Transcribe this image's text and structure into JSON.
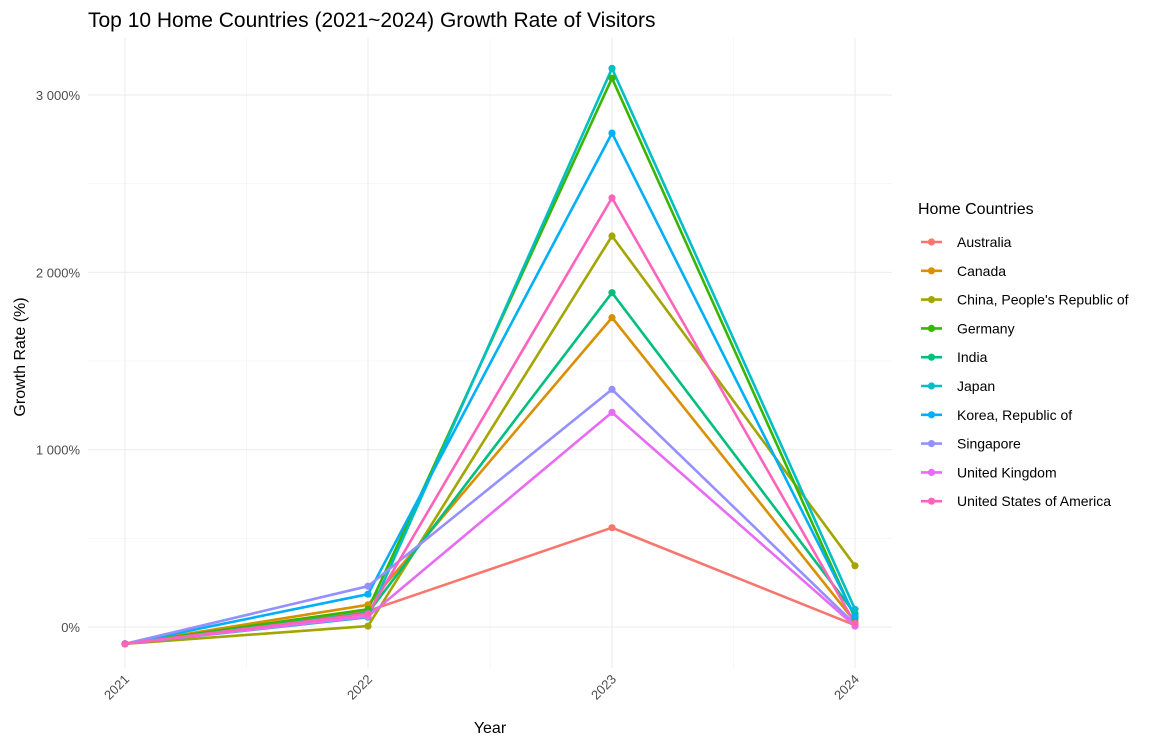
{
  "chart_data": {
    "type": "line",
    "title": "Top 10 Home Countries (2021~2024) Growth Rate of Visitors",
    "xlabel": "Year",
    "ylabel": "Growth Rate (%)",
    "x": [
      "2021",
      "2022",
      "2023",
      "2024"
    ],
    "ylim": [
      -250,
      3300
    ],
    "yticks": [
      0,
      1000,
      2000,
      3000
    ],
    "ytick_labels": [
      "0%",
      "1 000%",
      "2 000%",
      "3 000%"
    ],
    "grid": true,
    "legend": {
      "title": "Home Countries",
      "position": "right"
    },
    "series": [
      {
        "name": "Australia",
        "color": "#F8766D",
        "values": [
          -95,
          90,
          560,
          10
        ]
      },
      {
        "name": "Canada",
        "color": "#D89000",
        "values": [
          -95,
          125,
          1745,
          30
        ]
      },
      {
        "name": "China, People's Republic of",
        "color": "#A3A500",
        "values": [
          -95,
          5,
          2205,
          345
        ]
      },
      {
        "name": "Germany",
        "color": "#39B600",
        "values": [
          -95,
          100,
          3095,
          50
        ]
      },
      {
        "name": "India",
        "color": "#00BF7D",
        "values": [
          -95,
          80,
          1885,
          75
        ]
      },
      {
        "name": "Japan",
        "color": "#00BFC4",
        "values": [
          -95,
          55,
          3150,
          100
        ]
      },
      {
        "name": "Korea, Republic of",
        "color": "#00B0F6",
        "values": [
          -95,
          185,
          2785,
          60
        ]
      },
      {
        "name": "Singapore",
        "color": "#9590FF",
        "values": [
          -95,
          230,
          1340,
          15
        ]
      },
      {
        "name": "United Kingdom",
        "color": "#E76BF3",
        "values": [
          -95,
          60,
          1210,
          5
        ]
      },
      {
        "name": "United States of America",
        "color": "#FF62BC",
        "values": [
          -95,
          75,
          2420,
          20
        ]
      }
    ]
  }
}
